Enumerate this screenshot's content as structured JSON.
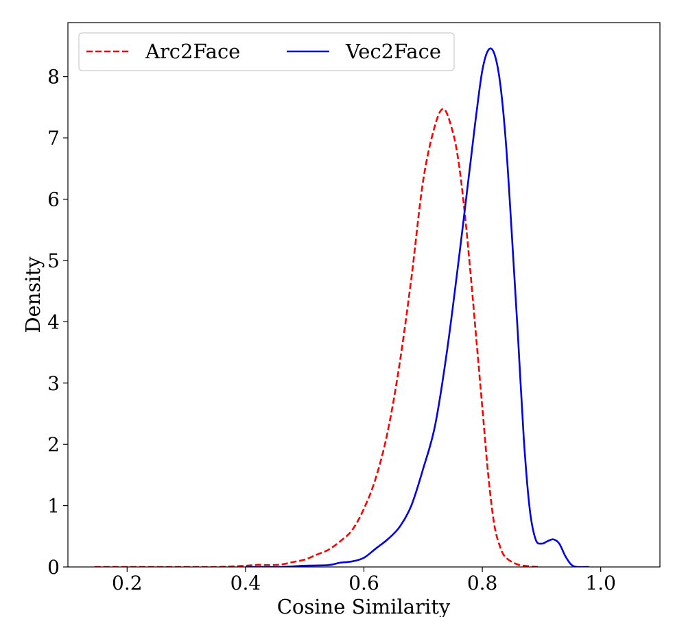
{
  "chart_data": {
    "type": "line",
    "xlabel": "Cosine Similarity",
    "ylabel": "Density",
    "xlim": [
      0.1,
      1.1
    ],
    "ylim": [
      0,
      8.88
    ],
    "xticks": [
      0.2,
      0.4,
      0.6,
      0.8,
      1.0
    ],
    "xtick_labels": [
      "0.2",
      "0.4",
      "0.6",
      "0.8",
      "1.0"
    ],
    "yticks": [
      0,
      1,
      2,
      3,
      4,
      5,
      6,
      7,
      8
    ],
    "ytick_labels": [
      "0",
      "1",
      "2",
      "3",
      "4",
      "5",
      "6",
      "7",
      "8"
    ],
    "grid": false,
    "legend": {
      "placement": "top-left",
      "columns": 2
    },
    "series": [
      {
        "name": "Arc2Face",
        "color": "#ff0000",
        "style": "dashed",
        "x": [
          0.145,
          0.2,
          0.3,
          0.35,
          0.4,
          0.42,
          0.44,
          0.46,
          0.48,
          0.5,
          0.52,
          0.54,
          0.56,
          0.58,
          0.6,
          0.62,
          0.64,
          0.66,
          0.68,
          0.7,
          0.72,
          0.735,
          0.75,
          0.76,
          0.77,
          0.78,
          0.79,
          0.8,
          0.81,
          0.82,
          0.83,
          0.84,
          0.86,
          0.88,
          0.895
        ],
        "y": [
          0.0,
          0.0,
          0.0,
          0.0,
          0.02,
          0.035,
          0.03,
          0.04,
          0.08,
          0.12,
          0.2,
          0.28,
          0.42,
          0.6,
          0.95,
          1.45,
          2.2,
          3.3,
          4.7,
          6.3,
          7.2,
          7.47,
          7.1,
          6.6,
          5.8,
          4.8,
          3.7,
          2.6,
          1.5,
          0.7,
          0.33,
          0.15,
          0.04,
          0.01,
          0.0
        ]
      },
      {
        "name": "Vec2Face",
        "color": "#0000ee",
        "style": "solid",
        "x": [
          0.4,
          0.46,
          0.5,
          0.54,
          0.56,
          0.58,
          0.6,
          0.62,
          0.64,
          0.66,
          0.68,
          0.7,
          0.72,
          0.74,
          0.76,
          0.78,
          0.79,
          0.8,
          0.81,
          0.82,
          0.83,
          0.84,
          0.85,
          0.86,
          0.87,
          0.88,
          0.89,
          0.9,
          0.91,
          0.92,
          0.93,
          0.94,
          0.95,
          0.96,
          0.98
        ],
        "y": [
          0.0,
          0.0,
          0.02,
          0.03,
          0.07,
          0.09,
          0.15,
          0.3,
          0.45,
          0.65,
          1.0,
          1.6,
          2.3,
          3.5,
          5.0,
          6.6,
          7.4,
          8.1,
          8.43,
          8.38,
          7.9,
          6.9,
          5.4,
          3.8,
          2.1,
          0.95,
          0.45,
          0.38,
          0.42,
          0.45,
          0.38,
          0.18,
          0.04,
          0.0,
          0.0
        ]
      }
    ]
  }
}
